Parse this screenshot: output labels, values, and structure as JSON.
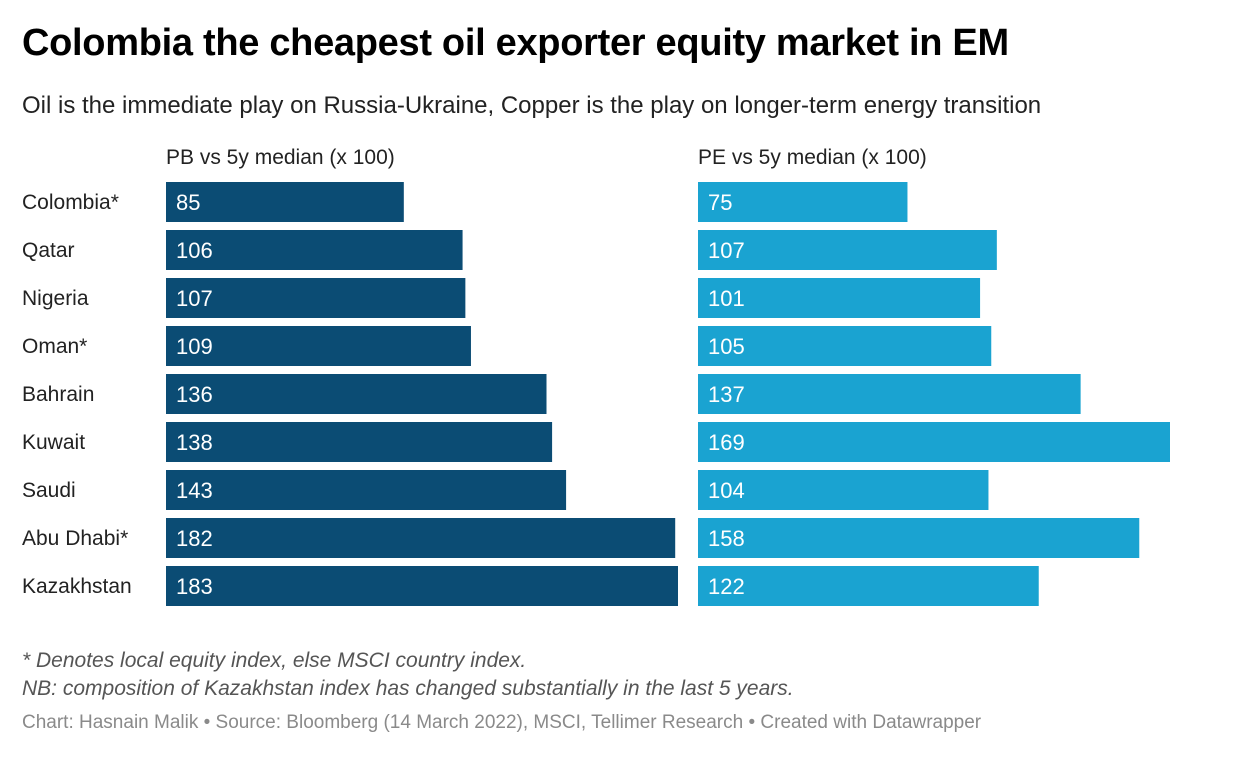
{
  "header": {
    "title": "Colombia the cheapest oil exporter equity market in EM",
    "subtitle": "Oil is the immediate play on Russia-Ukraine, Copper is the play on longer-term energy transition"
  },
  "chart_data": {
    "type": "bar",
    "orientation": "horizontal",
    "categories": [
      "Colombia*",
      "Qatar",
      "Nigeria",
      "Oman*",
      "Bahrain",
      "Kuwait",
      "Saudi",
      "Abu Dhabi*",
      "Kazakhstan"
    ],
    "series": [
      {
        "name": "PB vs 5y median (x 100)",
        "color": "#0b4c74",
        "values": [
          85,
          106,
          107,
          109,
          136,
          138,
          143,
          182,
          183
        ],
        "xlim": [
          0,
          183
        ]
      },
      {
        "name": "PE vs 5y median (x 100)",
        "color": "#1aa3d1",
        "values": [
          75,
          107,
          101,
          105,
          137,
          169,
          104,
          158,
          122
        ],
        "xlim": [
          0,
          169
        ]
      }
    ],
    "data_labels": "inside-left",
    "grid": false
  },
  "footer": {
    "note1": "* Denotes local equity index, else MSCI country index.",
    "note2": "NB: composition of Kazakhstan index has changed substantially in the last 5 years.",
    "credit": "Chart: Hasnain Malik • Source: Bloomberg (14 March 2022), MSCI, Tellimer Research • Created with Datawrapper"
  }
}
